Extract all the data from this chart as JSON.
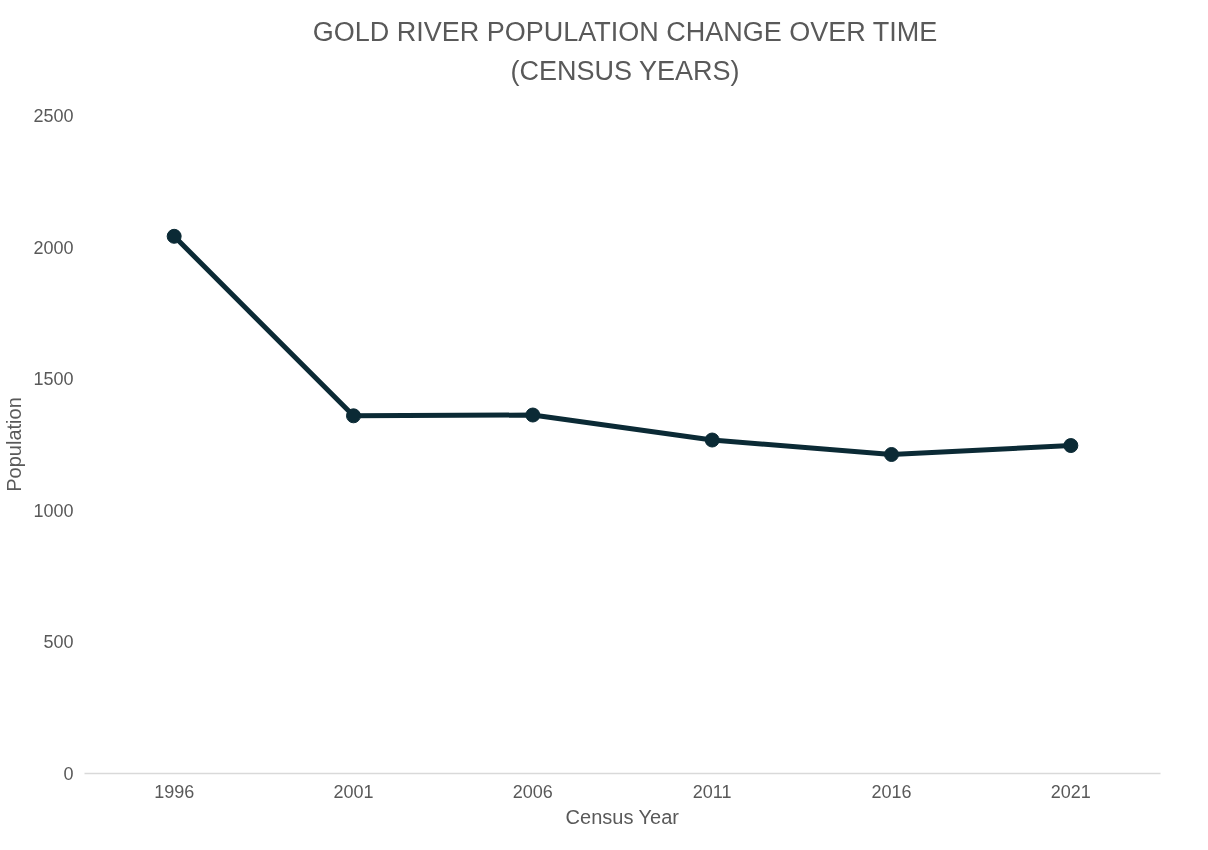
{
  "chart_data": {
    "type": "line",
    "title": "GOLD RIVER POPULATION CHANGE OVER TIME (CENSUS YEARS)",
    "xlabel": "Census Year",
    "ylabel": "Population",
    "categories": [
      "1996",
      "2001",
      "2006",
      "2011",
      "2016",
      "2021"
    ],
    "series": [
      {
        "color": "#0b2a35",
        "values": [
          2041,
          1359,
          1362,
          1267,
          1212,
          1246
        ]
      }
    ],
    "ylim": [
      0,
      2500
    ],
    "yticks": [
      0,
      500,
      1000,
      1500,
      2000,
      2500
    ],
    "grid": false,
    "marker": "circle",
    "line_style": "solid"
  }
}
